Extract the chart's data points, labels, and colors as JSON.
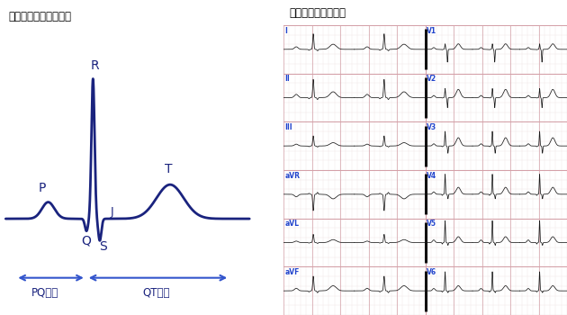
{
  "left_title": "【心電図波形の名称】",
  "right_title": "【正常心電図波形】",
  "ecg_color": "#1a237e",
  "bg_color": "#ffffff",
  "grid_color_major": "#d4a0a8",
  "grid_color_minor": "#eddde0",
  "label_color": "#2244cc",
  "arrow_color": "#3355cc",
  "pq_label": "PQ間隔",
  "qt_label": "QT間隔",
  "lead_labels_left": [
    "I",
    "II",
    "III",
    "aVR",
    "aVL",
    "aVF"
  ],
  "lead_labels_right": [
    "V1",
    "V2",
    "V3",
    "V4",
    "V5",
    "V6"
  ]
}
